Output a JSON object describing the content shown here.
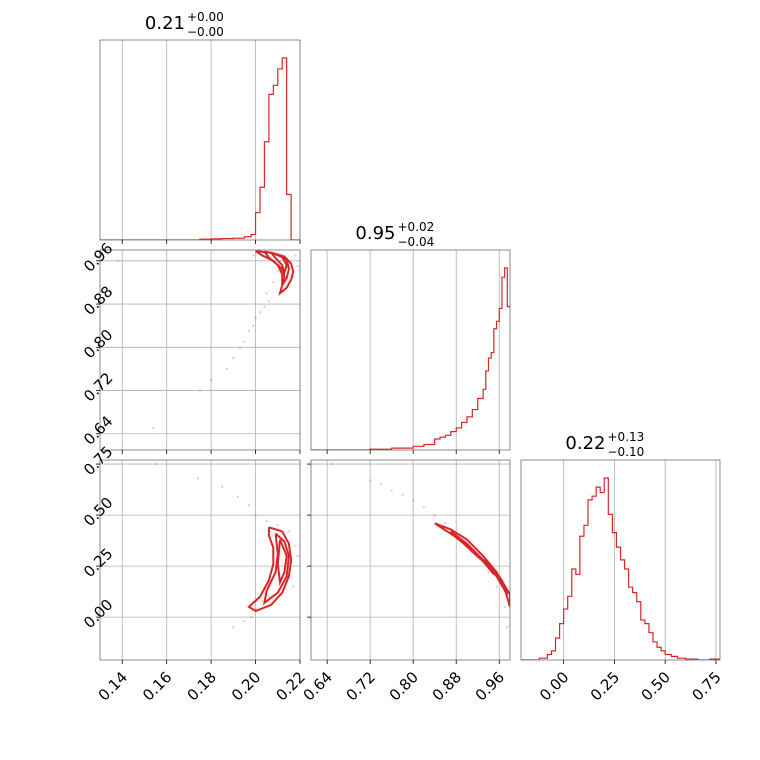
{
  "chart_data": {
    "type": "corner",
    "color": "#d62728",
    "parameters": [
      {
        "title_value": "0.21",
        "title_plus": "+0.00",
        "title_minus": "−0.00",
        "range": [
          0.13,
          0.22
        ],
        "ticks": [
          0.14,
          0.16,
          0.18,
          0.2,
          0.22
        ],
        "tick_labels": [
          "0.14",
          "0.16",
          "0.18",
          "0.20",
          "0.22"
        ]
      },
      {
        "title_value": "0.95",
        "title_plus": "+0.02",
        "title_minus": "−0.04",
        "range": [
          0.61,
          0.98
        ],
        "ticks": [
          0.64,
          0.72,
          0.8,
          0.88,
          0.96
        ],
        "tick_labels": [
          "0.64",
          "0.72",
          "0.80",
          "0.88",
          "0.96"
        ]
      },
      {
        "title_value": "0.22",
        "title_plus": "+0.13",
        "title_minus": "−0.10",
        "range": [
          -0.21,
          0.77
        ],
        "ticks": [
          0.0,
          0.25,
          0.5,
          0.75
        ],
        "tick_labels": [
          "0.00",
          "0.25",
          "0.50",
          "0.75"
        ]
      }
    ],
    "histograms": [
      {
        "edges": [
          0.13,
          0.175,
          0.18,
          0.185,
          0.19,
          0.195,
          0.198,
          0.2,
          0.202,
          0.204,
          0.206,
          0.208,
          0.21,
          0.212,
          0.214,
          0.216,
          0.22
        ],
        "counts": [
          0,
          0.004,
          0.006,
          0.008,
          0.01,
          0.018,
          0.03,
          0.15,
          0.29,
          0.54,
          0.8,
          0.85,
          0.94,
          1.0,
          0.25,
          0.0
        ]
      },
      {
        "edges": [
          0.61,
          0.72,
          0.76,
          0.8,
          0.82,
          0.84,
          0.85,
          0.86,
          0.87,
          0.88,
          0.89,
          0.9,
          0.91,
          0.92,
          0.93,
          0.935,
          0.94,
          0.945,
          0.95,
          0.955,
          0.96,
          0.965,
          0.97,
          0.975,
          0.98
        ],
        "counts": [
          0.0,
          0.004,
          0.01,
          0.02,
          0.03,
          0.06,
          0.07,
          0.08,
          0.1,
          0.12,
          0.15,
          0.18,
          0.22,
          0.28,
          0.33,
          0.43,
          0.5,
          0.53,
          0.66,
          0.7,
          0.77,
          0.94,
          0.99,
          0.78
        ]
      },
      {
        "edges": [
          -0.21,
          -0.12,
          -0.08,
          -0.06,
          -0.04,
          -0.02,
          0.0,
          0.02,
          0.04,
          0.06,
          0.08,
          0.1,
          0.12,
          0.14,
          0.16,
          0.18,
          0.2,
          0.22,
          0.24,
          0.26,
          0.28,
          0.3,
          0.32,
          0.34,
          0.36,
          0.38,
          0.4,
          0.42,
          0.44,
          0.46,
          0.48,
          0.5,
          0.53,
          0.56,
          0.6,
          0.66,
          0.72,
          0.77
        ],
        "counts": [
          0.0,
          0.01,
          0.03,
          0.05,
          0.12,
          0.2,
          0.28,
          0.35,
          0.5,
          0.47,
          0.68,
          0.74,
          0.88,
          0.9,
          0.95,
          0.92,
          1.0,
          0.8,
          0.7,
          0.62,
          0.55,
          0.5,
          0.4,
          0.37,
          0.32,
          0.22,
          0.2,
          0.15,
          0.1,
          0.07,
          0.05,
          0.03,
          0.02,
          0.01,
          0.005,
          0.0,
          0.005
        ]
      }
    ],
    "pairs": [
      {
        "x_param": 0,
        "y_param": 1,
        "points": [
          [
            0.138,
            0.96
          ],
          [
            0.154,
            0.65
          ],
          [
            0.175,
            0.72
          ],
          [
            0.18,
            0.74
          ],
          [
            0.187,
            0.76
          ],
          [
            0.19,
            0.78
          ],
          [
            0.193,
            0.8
          ],
          [
            0.195,
            0.81
          ],
          [
            0.197,
            0.83
          ],
          [
            0.199,
            0.84
          ],
          [
            0.2,
            0.855
          ],
          [
            0.202,
            0.865
          ],
          [
            0.204,
            0.875
          ],
          [
            0.206,
            0.885
          ],
          [
            0.205,
            0.9
          ],
          [
            0.208,
            0.92
          ],
          [
            0.21,
            0.94
          ],
          [
            0.213,
            0.96
          ],
          [
            0.218,
            0.97
          ],
          [
            0.219,
            0.95
          ],
          [
            0.217,
            0.93
          ],
          [
            0.211,
            0.97
          ],
          [
            0.203,
            0.97
          ],
          [
            0.199,
            0.97
          ]
        ],
        "contours": [
          [
            [
              0.2,
              0.978
            ],
            [
              0.207,
              0.975
            ],
            [
              0.213,
              0.968
            ],
            [
              0.216,
              0.955
            ],
            [
              0.217,
              0.94
            ],
            [
              0.216,
              0.925
            ],
            [
              0.214,
              0.91
            ],
            [
              0.211,
              0.9
            ],
            [
              0.212,
              0.915
            ],
            [
              0.213,
              0.93
            ],
            [
              0.212,
              0.945
            ],
            [
              0.208,
              0.96
            ],
            [
              0.203,
              0.97
            ],
            [
              0.2,
              0.978
            ]
          ],
          [
            [
              0.204,
              0.977
            ],
            [
              0.209,
              0.973
            ],
            [
              0.214,
              0.962
            ],
            [
              0.215,
              0.945
            ],
            [
              0.214,
              0.928
            ],
            [
              0.212,
              0.915
            ],
            [
              0.212,
              0.935
            ],
            [
              0.21,
              0.952
            ],
            [
              0.206,
              0.966
            ],
            [
              0.204,
              0.977
            ]
          ],
          [
            [
              0.207,
              0.975
            ],
            [
              0.212,
              0.967
            ],
            [
              0.214,
              0.952
            ],
            [
              0.213,
              0.938
            ],
            [
              0.212,
              0.952
            ],
            [
              0.209,
              0.965
            ],
            [
              0.207,
              0.975
            ]
          ]
        ]
      },
      {
        "x_param": 0,
        "y_param": 2,
        "points": [
          [
            0.155,
            0.75
          ],
          [
            0.174,
            0.68
          ],
          [
            0.185,
            0.64
          ],
          [
            0.192,
            0.59
          ],
          [
            0.197,
            0.55
          ],
          [
            0.2,
            0.5
          ],
          [
            0.205,
            0.47
          ],
          [
            0.19,
            -0.05
          ],
          [
            0.195,
            -0.02
          ],
          [
            0.198,
            0.0
          ],
          [
            0.2,
            0.04
          ],
          [
            0.203,
            0.08
          ],
          [
            0.206,
            0.1
          ],
          [
            0.21,
            0.45
          ],
          [
            0.215,
            0.42
          ],
          [
            0.217,
            0.15
          ],
          [
            0.218,
            0.35
          ],
          [
            0.219,
            0.3
          ]
        ],
        "contours": [
          [
            [
              0.206,
              0.44
            ],
            [
              0.212,
              0.42
            ],
            [
              0.215,
              0.36
            ],
            [
              0.216,
              0.28
            ],
            [
              0.215,
              0.2
            ],
            [
              0.212,
              0.12
            ],
            [
              0.207,
              0.06
            ],
            [
              0.2,
              0.03
            ],
            [
              0.197,
              0.05
            ],
            [
              0.202,
              0.1
            ],
            [
              0.206,
              0.18
            ],
            [
              0.208,
              0.26
            ],
            [
              0.208,
              0.34
            ],
            [
              0.206,
              0.4
            ],
            [
              0.206,
              0.44
            ]
          ],
          [
            [
              0.209,
              0.41
            ],
            [
              0.213,
              0.37
            ],
            [
              0.215,
              0.3
            ],
            [
              0.214,
              0.2
            ],
            [
              0.21,
              0.12
            ],
            [
              0.204,
              0.07
            ],
            [
              0.205,
              0.13
            ],
            [
              0.209,
              0.22
            ],
            [
              0.21,
              0.31
            ],
            [
              0.209,
              0.41
            ]
          ],
          [
            [
              0.211,
              0.38
            ],
            [
              0.214,
              0.3
            ],
            [
              0.213,
              0.22
            ],
            [
              0.211,
              0.17
            ],
            [
              0.21,
              0.26
            ],
            [
              0.211,
              0.38
            ]
          ]
        ]
      },
      {
        "x_param": 1,
        "y_param": 2,
        "points": [
          [
            0.65,
            0.75
          ],
          [
            0.72,
            0.67
          ],
          [
            0.74,
            0.65
          ],
          [
            0.76,
            0.62
          ],
          [
            0.78,
            0.6
          ],
          [
            0.8,
            0.57
          ],
          [
            0.82,
            0.54
          ],
          [
            0.84,
            0.5
          ],
          [
            0.86,
            0.46
          ],
          [
            0.88,
            0.41
          ],
          [
            0.9,
            0.35
          ],
          [
            0.92,
            0.3
          ],
          [
            0.94,
            0.22
          ],
          [
            0.955,
            0.15
          ],
          [
            0.97,
            0.05
          ],
          [
            0.975,
            -0.05
          ]
        ],
        "contours": [
          [
            [
              0.84,
              0.46
            ],
            [
              0.87,
              0.43
            ],
            [
              0.9,
              0.38
            ],
            [
              0.93,
              0.3
            ],
            [
              0.955,
              0.22
            ],
            [
              0.97,
              0.14
            ],
            [
              0.98,
              0.05
            ],
            [
              0.98,
              0.11
            ],
            [
              0.96,
              0.2
            ],
            [
              0.935,
              0.27
            ],
            [
              0.905,
              0.34
            ],
            [
              0.875,
              0.4
            ],
            [
              0.84,
              0.46
            ]
          ],
          [
            [
              0.87,
              0.42
            ],
            [
              0.9,
              0.36
            ],
            [
              0.93,
              0.28
            ],
            [
              0.955,
              0.2
            ],
            [
              0.975,
              0.11
            ],
            [
              0.965,
              0.18
            ],
            [
              0.94,
              0.25
            ],
            [
              0.91,
              0.32
            ],
            [
              0.87,
              0.42
            ]
          ],
          [
            [
              0.9,
              0.35
            ],
            [
              0.925,
              0.29
            ],
            [
              0.95,
              0.21
            ],
            [
              0.945,
              0.24
            ],
            [
              0.92,
              0.3
            ],
            [
              0.9,
              0.35
            ]
          ]
        ]
      }
    ]
  }
}
